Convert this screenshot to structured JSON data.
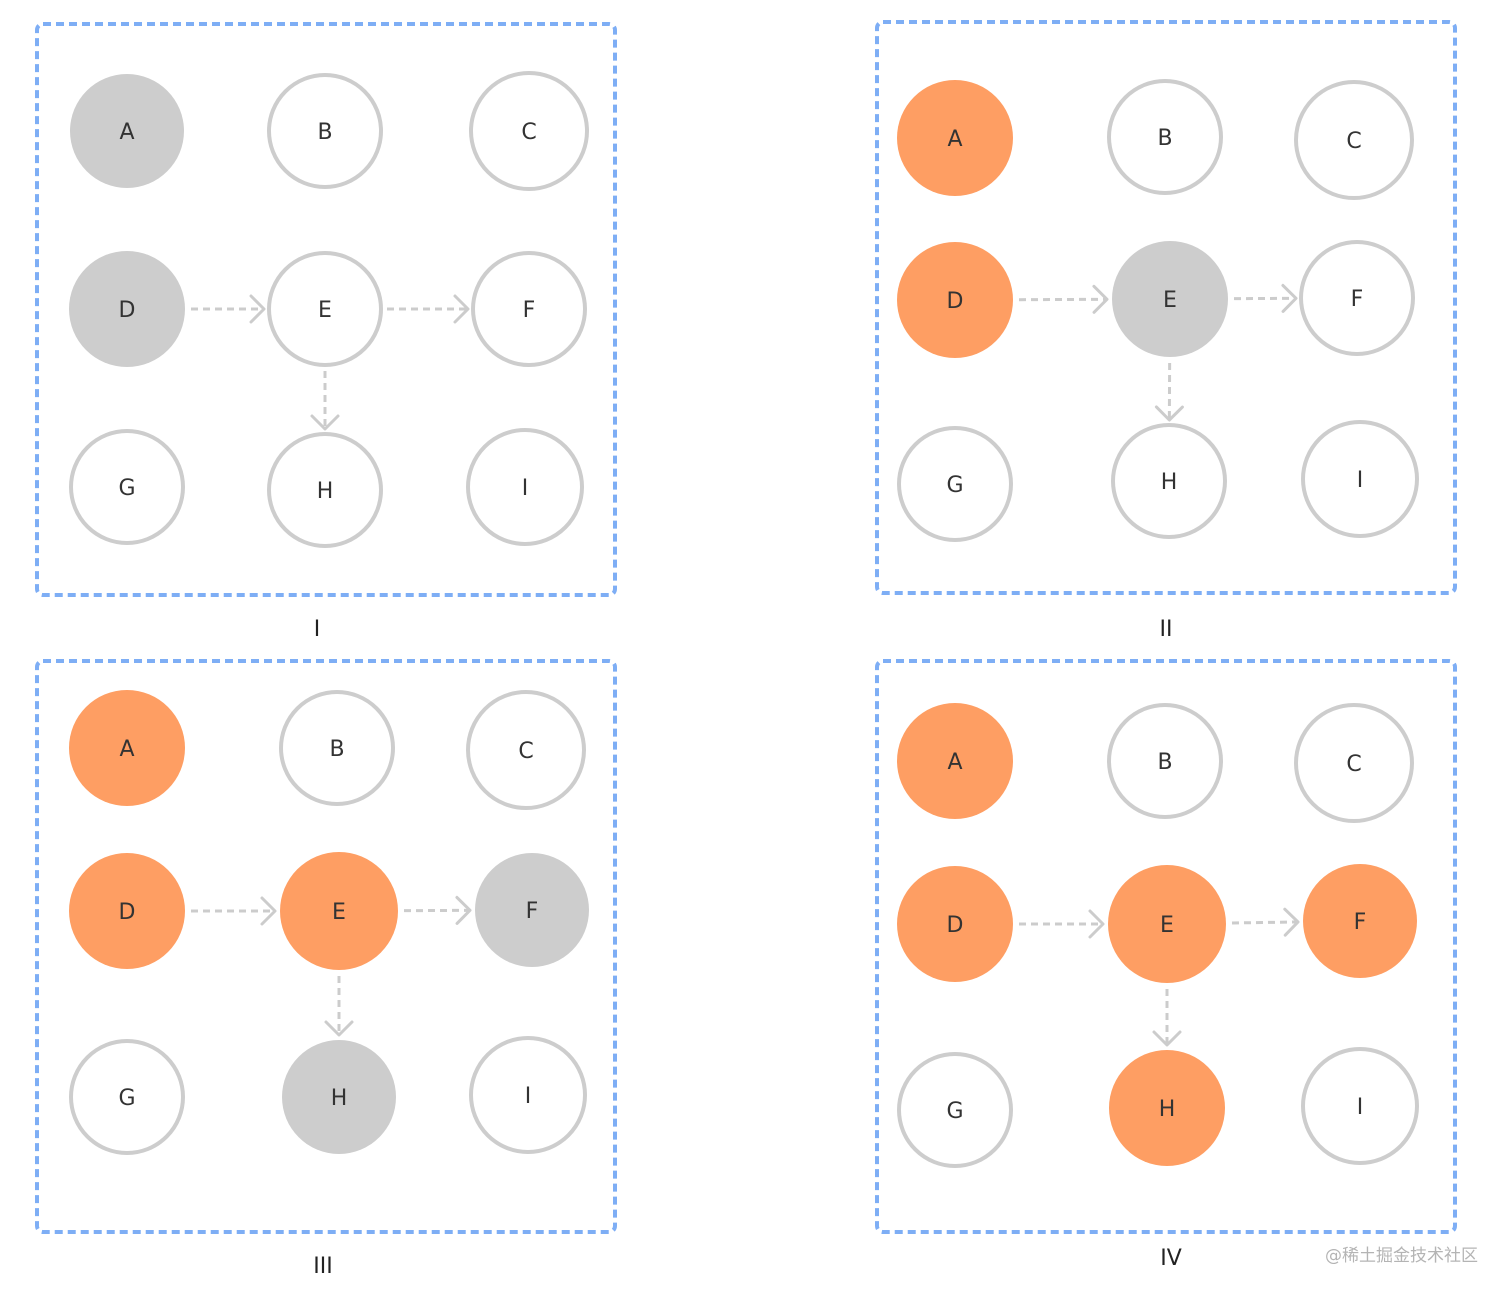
{
  "styles": {
    "unvisited": {
      "fill": "#ffffff",
      "stroke": "#cdcdcd"
    },
    "current": {
      "fill": "#cdcdcd",
      "stroke": "#cdcdcd"
    },
    "visited": {
      "fill": "#fe9e63",
      "stroke": "#fe9e63"
    },
    "frame": "#7eaef5",
    "edge": "#cccccc"
  },
  "edges": [
    {
      "from": "D",
      "to": "E"
    },
    {
      "from": "E",
      "to": "F"
    },
    {
      "from": "E",
      "to": "H"
    }
  ],
  "panels": [
    {
      "caption": "I",
      "nodes": [
        {
          "label": "A",
          "state": "current"
        },
        {
          "label": "B",
          "state": "unvisited"
        },
        {
          "label": "C",
          "state": "unvisited"
        },
        {
          "label": "D",
          "state": "current"
        },
        {
          "label": "E",
          "state": "unvisited"
        },
        {
          "label": "F",
          "state": "unvisited"
        },
        {
          "label": "G",
          "state": "unvisited"
        },
        {
          "label": "H",
          "state": "unvisited"
        },
        {
          "label": "I",
          "state": "unvisited"
        }
      ]
    },
    {
      "caption": "II",
      "nodes": [
        {
          "label": "A",
          "state": "visited"
        },
        {
          "label": "B",
          "state": "unvisited"
        },
        {
          "label": "C",
          "state": "unvisited"
        },
        {
          "label": "D",
          "state": "visited"
        },
        {
          "label": "E",
          "state": "current"
        },
        {
          "label": "F",
          "state": "unvisited"
        },
        {
          "label": "G",
          "state": "unvisited"
        },
        {
          "label": "H",
          "state": "unvisited"
        },
        {
          "label": "I",
          "state": "unvisited"
        }
      ]
    },
    {
      "caption": "III",
      "nodes": [
        {
          "label": "A",
          "state": "visited"
        },
        {
          "label": "B",
          "state": "unvisited"
        },
        {
          "label": "C",
          "state": "unvisited"
        },
        {
          "label": "D",
          "state": "visited"
        },
        {
          "label": "E",
          "state": "visited"
        },
        {
          "label": "F",
          "state": "current"
        },
        {
          "label": "G",
          "state": "unvisited"
        },
        {
          "label": "H",
          "state": "current"
        },
        {
          "label": "I",
          "state": "unvisited"
        }
      ]
    },
    {
      "caption": "IV",
      "nodes": [
        {
          "label": "A",
          "state": "visited"
        },
        {
          "label": "B",
          "state": "unvisited"
        },
        {
          "label": "C",
          "state": "unvisited"
        },
        {
          "label": "D",
          "state": "visited"
        },
        {
          "label": "E",
          "state": "visited"
        },
        {
          "label": "F",
          "state": "visited"
        },
        {
          "label": "G",
          "state": "unvisited"
        },
        {
          "label": "H",
          "state": "visited"
        },
        {
          "label": "I",
          "state": "unvisited"
        }
      ]
    }
  ],
  "watermark": "@稀土掘金技术社区"
}
